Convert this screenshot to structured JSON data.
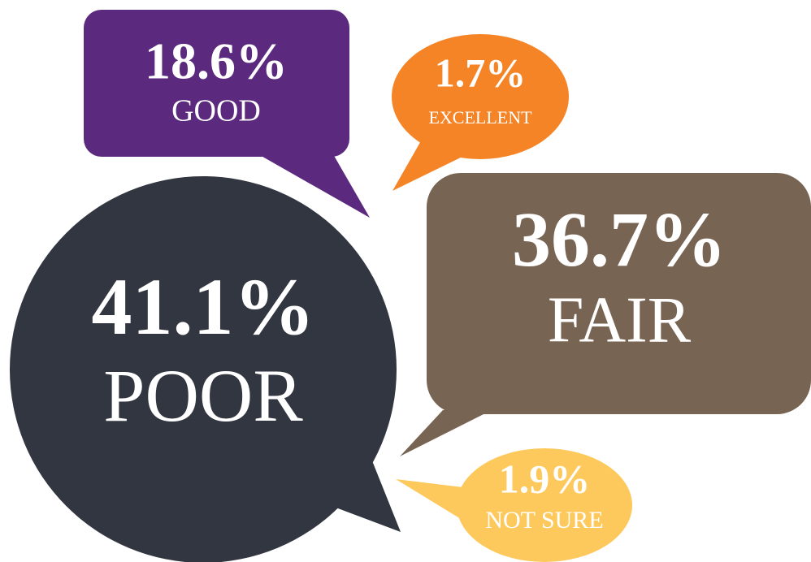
{
  "chart_data": {
    "type": "callout",
    "categories": [
      "GOOD",
      "EXCELLENT",
      "POOR",
      "FAIR",
      "NOT SURE"
    ],
    "values": [
      18.6,
      1.7,
      41.1,
      36.7,
      1.9
    ],
    "value_labels": [
      "18.6%",
      "1.7%",
      "41.1%",
      "36.7%",
      "1.9%"
    ],
    "colors": [
      "#5b2a7e",
      "#f58426",
      "#323640",
      "#786453",
      "#fdc95c"
    ]
  }
}
